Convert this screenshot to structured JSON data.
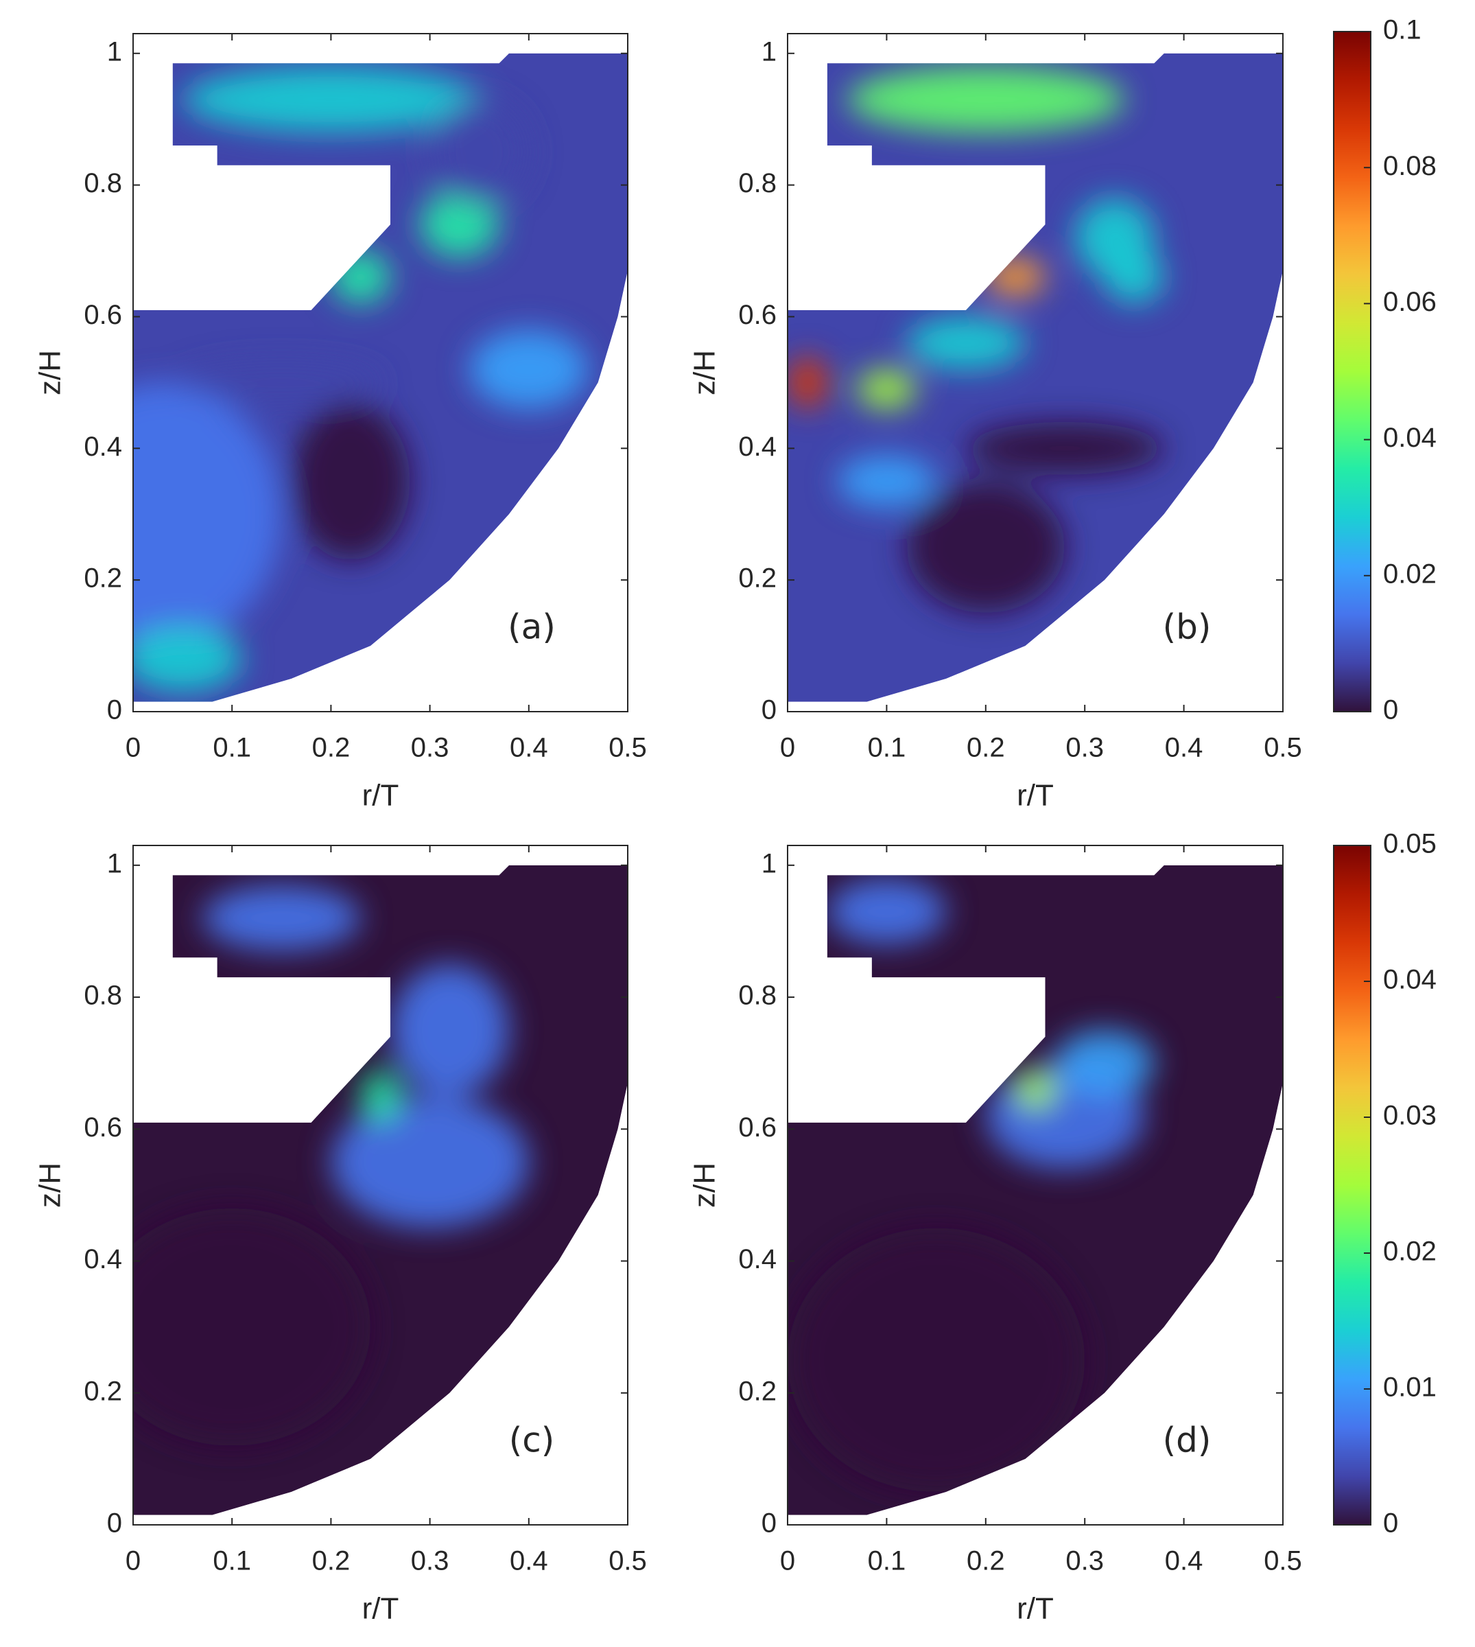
{
  "chart_data": [
    {
      "type": "heatmap",
      "label": "(a)",
      "xlabel": "r/T",
      "ylabel": "z/H",
      "xlim": [
        0,
        0.5
      ],
      "ylim": [
        0,
        1.03
      ],
      "xticks": [
        0,
        0.1,
        0.2,
        0.3,
        0.4,
        0.5
      ],
      "yticks": [
        0,
        0.2,
        0.4,
        0.6,
        0.8,
        1
      ]
    },
    {
      "type": "heatmap",
      "label": "(b)",
      "xlabel": "r/T",
      "ylabel": "z/H",
      "xlim": [
        0,
        0.5
      ],
      "ylim": [
        0,
        1.03
      ],
      "xticks": [
        0,
        0.1,
        0.2,
        0.3,
        0.4,
        0.5
      ],
      "yticks": [
        0,
        0.2,
        0.4,
        0.6,
        0.8,
        1
      ],
      "colorbar": {
        "lim": [
          0,
          0.1
        ],
        "ticks": [
          0,
          0.02,
          0.04,
          0.06,
          0.08,
          0.1
        ]
      },
      "colormap": [
        "#30123b",
        "#4145ab",
        "#4675ed",
        "#39a2fc",
        "#1bcfd4",
        "#24eca6",
        "#61fc6c",
        "#a4fc3b",
        "#d1e834",
        "#f3c63a",
        "#fe9b2d",
        "#f36315",
        "#d93806",
        "#b11901",
        "#7a0402"
      ]
    },
    {
      "type": "heatmap",
      "label": "(c)",
      "xlabel": "r/T",
      "ylabel": "z/H",
      "xlim": [
        0,
        0.5
      ],
      "ylim": [
        0,
        1.03
      ],
      "xticks": [
        0,
        0.1,
        0.2,
        0.3,
        0.4,
        0.5
      ],
      "yticks": [
        0,
        0.2,
        0.4,
        0.6,
        0.8,
        1
      ]
    },
    {
      "type": "heatmap",
      "label": "(d)",
      "xlabel": "r/T",
      "ylabel": "z/H",
      "xlim": [
        0,
        0.5
      ],
      "ylim": [
        0,
        1.03
      ],
      "xticks": [
        0,
        0.1,
        0.2,
        0.3,
        0.4,
        0.5
      ],
      "yticks": [
        0,
        0.2,
        0.4,
        0.6,
        0.8,
        1
      ],
      "colorbar": {
        "lim": [
          0,
          0.05
        ],
        "ticks": [
          0,
          0.01,
          0.02,
          0.03,
          0.04,
          0.05
        ]
      },
      "colormap": [
        "#30123b",
        "#4145ab",
        "#4675ed",
        "#39a2fc",
        "#1bcfd4",
        "#24eca6",
        "#61fc6c",
        "#a4fc3b",
        "#d1e834",
        "#f3c63a",
        "#fe9b2d",
        "#f36315",
        "#d93806",
        "#b11901",
        "#7a0402"
      ]
    }
  ]
}
